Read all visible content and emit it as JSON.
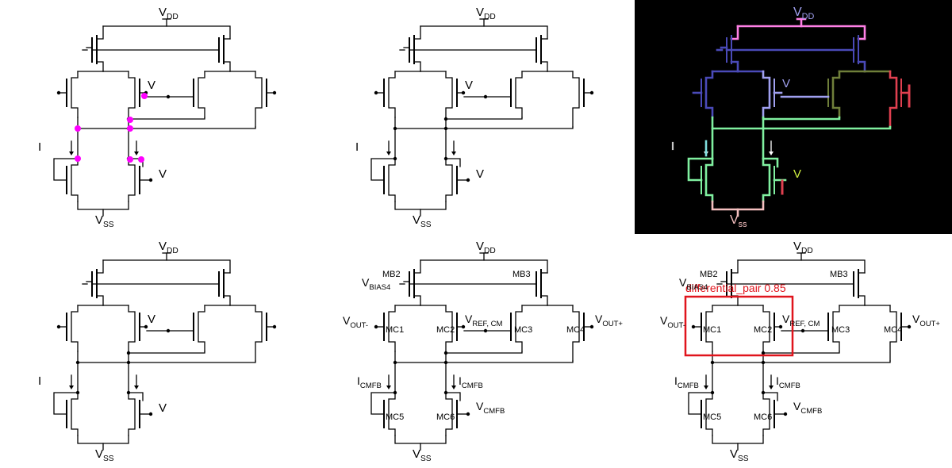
{
  "labels": {
    "vdd_main": "V",
    "vdd_sub": "DD",
    "vss_main": "V",
    "vss_sub": "SS",
    "v": "V",
    "i": "I",
    "mb2": "MB2",
    "mb3": "MB3",
    "mc1": "MC1",
    "mc2": "MC2",
    "mc3": "MC3",
    "mc4": "MC4",
    "mc5": "MC5",
    "mc6": "MC6",
    "vbias4_main": "V",
    "vbias4_sub": "BIAS4",
    "vout_minus_main": "V",
    "vout_minus_sub": "OUT-",
    "vout_plus_main": "V",
    "vout_plus_sub": "OUT+",
    "vref_main": "V",
    "vref_sub": "REF, CM",
    "icmfb_main": "I",
    "icmfb_sub": "CMFB",
    "vcmfb_main": "V",
    "vcmfb_sub": "CMFB",
    "vdd_colored": "V",
    "vdd_colored_sub": "DD",
    "vss_colored": "V",
    "vss_colored_sub": "ss",
    "v_colored": "V"
  },
  "detection": {
    "label": "differential_pair",
    "score": "0.85",
    "color": "#e0141c"
  },
  "colors": {
    "wire": "#000000",
    "node_marker": "#ff00ff",
    "seg_vdd": "#ff80e6",
    "seg_pmos_top": "#4a4ab8",
    "seg_olive": "#6f7f3a",
    "seg_lilac": "#a0a0f0",
    "seg_green": "#80f0a0",
    "seg_red": "#e04050",
    "seg_pink": "#f5c0c0",
    "seg_cyan": "#80e0e0",
    "seg_yellow": "#d0f040"
  }
}
